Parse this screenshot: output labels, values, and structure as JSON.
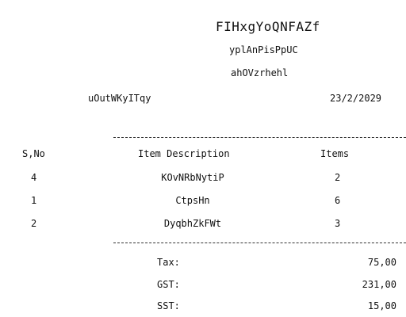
{
  "receipt": {
    "store_name": "FIHxgYoQNFAZf",
    "subtitle_1": "yplAnPisPpUC",
    "subtitle_2": "ahOVzrhehl",
    "cashier": "uOutWKyITqy",
    "date": "23/2/2029",
    "headers": {
      "sno": "S,No",
      "description": "Item Description",
      "items": "Items"
    },
    "rows": [
      {
        "sno": "4",
        "description": "KOvNRbNytiP",
        "qty": "2"
      },
      {
        "sno": "1",
        "description": "CtpsHn",
        "qty": "6"
      },
      {
        "sno": "2",
        "description": "DyqbhZkFWt",
        "qty": "3"
      }
    ],
    "totals": [
      {
        "label": "Tax:",
        "value": "75,00"
      },
      {
        "label": "GST:",
        "value": "231,00"
      },
      {
        "label": "SST:",
        "value": "15,00"
      }
    ]
  }
}
